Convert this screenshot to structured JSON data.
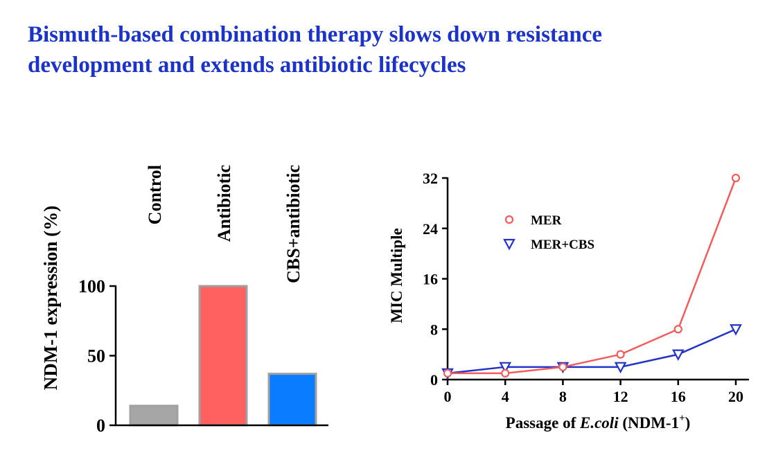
{
  "title": {
    "line1": "Bismuth-based combination therapy slows down resistance",
    "line2": "development and extends antibiotic lifecycles"
  },
  "chart_data": [
    {
      "type": "bar",
      "categories": [
        "Control",
        "Antibiotic",
        "CBS+antibiotic"
      ],
      "values": [
        14,
        100,
        37
      ],
      "colors": [
        "#a6a6a6",
        "#ff6161",
        "#0a7cff"
      ],
      "ylabel": "NDM-1 expression (%)",
      "ylim": [
        0,
        100
      ],
      "yticks": [
        "0",
        "50",
        "100"
      ]
    },
    {
      "type": "line",
      "xlabel": {
        "prefix": "Passage of ",
        "italic": "E.coli",
        "suffix": " (NDM-1",
        "sup": "+",
        "close": ")"
      },
      "ylabel": "MIC Multiple",
      "xlim": [
        0,
        20
      ],
      "ylim": [
        0,
        32
      ],
      "xticks": [
        "0",
        "4",
        "8",
        "12",
        "16",
        "20"
      ],
      "yticks": [
        "0",
        "8",
        "16",
        "24",
        "32"
      ],
      "legend_placement": "upper-left",
      "series": [
        {
          "name": "MER",
          "marker": "circle",
          "color": "#f45b5b",
          "x": [
            0,
            4,
            8,
            12,
            16,
            20
          ],
          "y": [
            1,
            1,
            2,
            4,
            8,
            32
          ]
        },
        {
          "name": "MER+CBS",
          "marker": "triangle-down",
          "color": "#2233c8",
          "x": [
            0,
            4,
            8,
            12,
            16,
            20
          ],
          "y": [
            1,
            2,
            2,
            2,
            4,
            8
          ]
        }
      ]
    }
  ]
}
